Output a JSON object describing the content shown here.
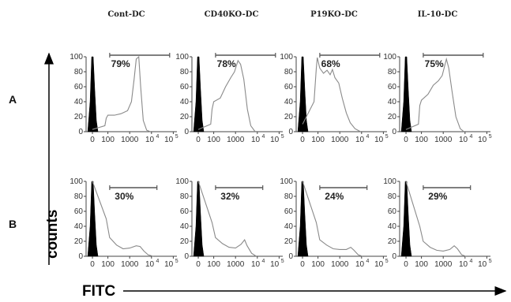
{
  "chart_data": {
    "type": "histogram-grid",
    "columns": [
      "Cont-DC",
      "CD40KO-DC",
      "P19KO-DC",
      "IL-10-DC"
    ],
    "rows": [
      "A",
      "B"
    ],
    "xlabel": "FITC",
    "ylabel": "counts",
    "x_tick_labels": [
      "0",
      "100",
      "1000",
      "10",
      "4",
      "10",
      "5"
    ],
    "y_tick_labels": [
      "0",
      "20",
      "40",
      "60",
      "80",
      "100"
    ],
    "ylim": [
      0,
      100
    ],
    "x_scale": "log",
    "x_ticks": [
      0,
      100,
      1000,
      10000,
      100000
    ],
    "panels": [
      {
        "row": "A",
        "column": "Cont-DC",
        "percent": "79%",
        "curve": [
          [
            0,
            3
          ],
          [
            40,
            8
          ],
          [
            60,
            18
          ],
          [
            100,
            22
          ],
          [
            200,
            22
          ],
          [
            400,
            24
          ],
          [
            800,
            28
          ],
          [
            1200,
            40
          ],
          [
            1600,
            70
          ],
          [
            2000,
            97
          ],
          [
            2600,
            100
          ],
          [
            3200,
            60
          ],
          [
            4200,
            15
          ],
          [
            6000,
            2
          ],
          [
            9000,
            0
          ]
        ]
      },
      {
        "row": "A",
        "column": "CD40KO-DC",
        "percent": "78%",
        "curve": [
          [
            0,
            3
          ],
          [
            40,
            10
          ],
          [
            60,
            30
          ],
          [
            100,
            40
          ],
          [
            200,
            45
          ],
          [
            350,
            60
          ],
          [
            600,
            72
          ],
          [
            900,
            80
          ],
          [
            1300,
            95
          ],
          [
            1700,
            90
          ],
          [
            2400,
            70
          ],
          [
            3500,
            30
          ],
          [
            5000,
            8
          ],
          [
            8000,
            0
          ]
        ]
      },
      {
        "row": "A",
        "column": "P19KO-DC",
        "percent": "68%",
        "curve": [
          [
            0,
            10
          ],
          [
            30,
            40
          ],
          [
            60,
            85
          ],
          [
            80,
            99
          ],
          [
            120,
            85
          ],
          [
            180,
            78
          ],
          [
            260,
            82
          ],
          [
            360,
            76
          ],
          [
            460,
            83
          ],
          [
            600,
            72
          ],
          [
            900,
            65
          ],
          [
            1300,
            45
          ],
          [
            2000,
            25
          ],
          [
            3000,
            12
          ],
          [
            5000,
            4
          ],
          [
            9000,
            0
          ]
        ]
      },
      {
        "row": "A",
        "column": "IL-10-DC",
        "percent": "75%",
        "curve": [
          [
            0,
            3
          ],
          [
            40,
            10
          ],
          [
            60,
            35
          ],
          [
            100,
            42
          ],
          [
            200,
            50
          ],
          [
            350,
            62
          ],
          [
            600,
            68
          ],
          [
            900,
            75
          ],
          [
            1400,
            97
          ],
          [
            1800,
            85
          ],
          [
            2500,
            55
          ],
          [
            3800,
            20
          ],
          [
            6000,
            4
          ],
          [
            9000,
            0
          ]
        ]
      },
      {
        "row": "B",
        "column": "Cont-DC",
        "percent": "30%",
        "curve": [
          [
            0,
            100
          ],
          [
            60,
            50
          ],
          [
            120,
            25
          ],
          [
            250,
            15
          ],
          [
            500,
            10
          ],
          [
            1000,
            11
          ],
          [
            2000,
            14
          ],
          [
            3000,
            13
          ],
          [
            4500,
            7
          ],
          [
            7000,
            2
          ],
          [
            12000,
            0
          ]
        ]
      },
      {
        "row": "B",
        "column": "CD40KO-DC",
        "percent": "32%",
        "curve": [
          [
            0,
            100
          ],
          [
            60,
            45
          ],
          [
            120,
            25
          ],
          [
            250,
            17
          ],
          [
            500,
            12
          ],
          [
            1000,
            11
          ],
          [
            1800,
            16
          ],
          [
            2600,
            22
          ],
          [
            3400,
            14
          ],
          [
            5500,
            4
          ],
          [
            9000,
            0
          ]
        ]
      },
      {
        "row": "B",
        "column": "P19KO-DC",
        "percent": "24%",
        "curve": [
          [
            0,
            100
          ],
          [
            60,
            45
          ],
          [
            120,
            22
          ],
          [
            250,
            15
          ],
          [
            500,
            10
          ],
          [
            1000,
            9
          ],
          [
            2000,
            9
          ],
          [
            3200,
            12
          ],
          [
            4500,
            8
          ],
          [
            7000,
            2
          ],
          [
            11000,
            0
          ]
        ]
      },
      {
        "row": "B",
        "column": "IL-10-DC",
        "percent": "29%",
        "curve": [
          [
            0,
            100
          ],
          [
            60,
            40
          ],
          [
            120,
            20
          ],
          [
            250,
            12
          ],
          [
            500,
            8
          ],
          [
            1000,
            7
          ],
          [
            2000,
            9
          ],
          [
            3200,
            14
          ],
          [
            4500,
            10
          ],
          [
            7000,
            2
          ],
          [
            11000,
            0
          ]
        ]
      }
    ],
    "grid": false,
    "legend": "none"
  }
}
